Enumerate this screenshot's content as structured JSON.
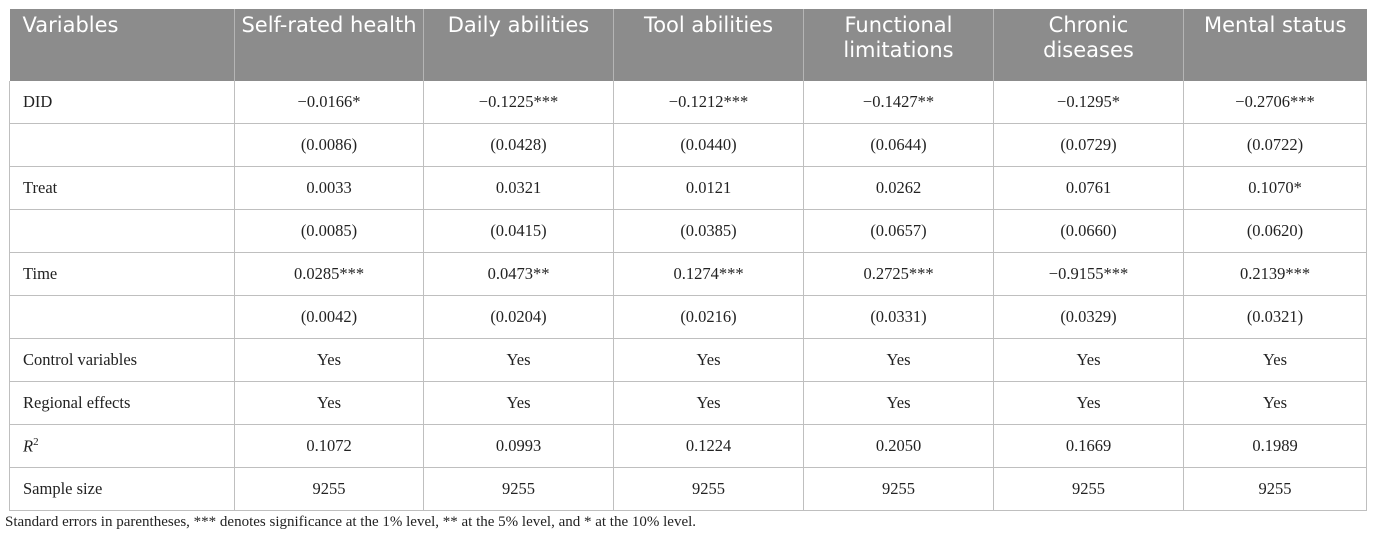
{
  "header": [
    "Variables",
    "Self-rated health",
    "Daily abilities",
    "Tool abilities",
    "Functional limitations",
    "Chronic diseases",
    "Mental status"
  ],
  "rows": [
    {
      "label": "DID",
      "cells": [
        "−0.0166*",
        "−0.1225***",
        "−0.1212***",
        "−0.1427**",
        "−0.1295*",
        "−0.2706***"
      ]
    },
    {
      "label": "",
      "cells": [
        "(0.0086)",
        "(0.0428)",
        "(0.0440)",
        "(0.0644)",
        "(0.0729)",
        "(0.0722)"
      ]
    },
    {
      "label": "Treat",
      "cells": [
        "0.0033",
        "0.0321",
        "0.0121",
        "0.0262",
        "0.0761",
        "0.1070*"
      ]
    },
    {
      "label": "",
      "cells": [
        "(0.0085)",
        "(0.0415)",
        "(0.0385)",
        "(0.0657)",
        "(0.0660)",
        "(0.0620)"
      ]
    },
    {
      "label": "Time",
      "cells": [
        "0.0285***",
        "0.0473**",
        "0.1274***",
        "0.2725***",
        "−0.9155***",
        "0.2139***"
      ]
    },
    {
      "label": "",
      "cells": [
        "(0.0042)",
        "(0.0204)",
        "(0.0216)",
        "(0.0331)",
        "(0.0329)",
        "(0.0321)"
      ]
    },
    {
      "label": "Control variables",
      "cells": [
        "Yes",
        "Yes",
        "Yes",
        "Yes",
        "Yes",
        "Yes"
      ]
    },
    {
      "label": "Regional effects",
      "cells": [
        "Yes",
        "Yes",
        "Yes",
        "Yes",
        "Yes",
        "Yes"
      ]
    },
    {
      "label": "R",
      "sup": "2",
      "cells": [
        "0.1072",
        "0.0993",
        "0.1224",
        "0.2050",
        "0.1669",
        "0.1989"
      ]
    },
    {
      "label": "Sample size",
      "cells": [
        "9255",
        "9255",
        "9255",
        "9255",
        "9255",
        "9255"
      ]
    }
  ],
  "footnote": "Standard errors in parentheses, *** denotes significance at the 1% level, ** at the 5% level, and * at the 10% level."
}
